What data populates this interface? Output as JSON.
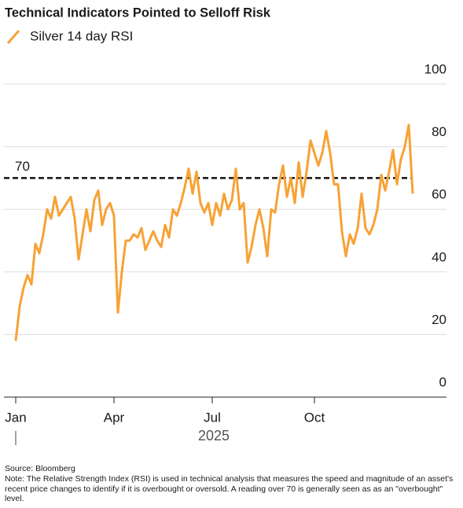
{
  "chart_data": {
    "type": "line",
    "title": "Technical Indicators Pointed to Selloff Risk",
    "categories": [
      "Jan",
      null,
      null,
      null,
      null,
      null,
      null,
      null,
      null,
      null,
      null,
      null,
      null,
      null,
      null,
      null,
      null,
      null,
      null,
      null,
      null,
      null,
      null,
      null,
      null,
      "Apr",
      null,
      null,
      null,
      null,
      null,
      null,
      null,
      null,
      null,
      null,
      null,
      null,
      null,
      null,
      null,
      null,
      null,
      null,
      null,
      null,
      null,
      null,
      null,
      null,
      "Jul",
      null,
      null,
      null,
      null,
      null,
      null,
      null,
      null,
      null,
      null,
      null,
      null,
      null,
      null,
      null,
      null,
      null,
      null,
      null,
      null,
      null,
      null,
      null,
      null,
      null,
      "Oct",
      null,
      null,
      null,
      null,
      null,
      null,
      null,
      null,
      null,
      null,
      null,
      null,
      null,
      null,
      null,
      null,
      null,
      null,
      null,
      null,
      null,
      null,
      null,
      null,
      null
    ],
    "series": [
      {
        "name": "Silver 14 day RSI",
        "color": "#f7a235",
        "values": [
          18,
          29,
          35,
          39,
          36,
          49,
          46,
          52,
          60,
          57,
          64,
          58,
          60,
          62,
          64,
          57,
          44,
          52,
          60,
          53,
          63,
          66,
          55,
          60,
          62,
          58,
          27,
          40,
          50,
          50,
          52,
          51,
          54,
          47,
          50,
          53,
          50,
          48,
          55,
          51,
          60,
          58,
          62,
          67,
          73,
          65,
          72,
          62,
          59,
          62,
          55,
          62,
          58,
          65,
          60,
          63,
          73,
          60,
          62,
          43,
          48,
          55,
          60,
          54,
          45,
          60,
          59,
          68,
          74,
          64,
          70,
          62,
          75,
          64,
          72,
          82,
          78,
          74,
          78,
          85,
          78,
          68,
          68,
          53,
          45,
          52,
          49,
          54,
          65,
          54,
          52,
          55,
          60,
          71,
          66,
          72,
          79,
          68,
          76,
          80,
          87,
          65
        ]
      }
    ],
    "ylim": [
      0,
      100
    ],
    "yticks": [
      0,
      20,
      40,
      60,
      80,
      100
    ],
    "grid": true,
    "reference_line": {
      "value": 70,
      "label": "70"
    },
    "year_label": "2025",
    "source": "Source: Bloomberg",
    "note": "Note: The Relative Strength Index (RSI) is used in technical analysis that measures the speed and magnitude of an asset's recent price changes to identify if it is overbought or oversold. A reading over 70 is generally seen as as an \"overbought\" level."
  }
}
